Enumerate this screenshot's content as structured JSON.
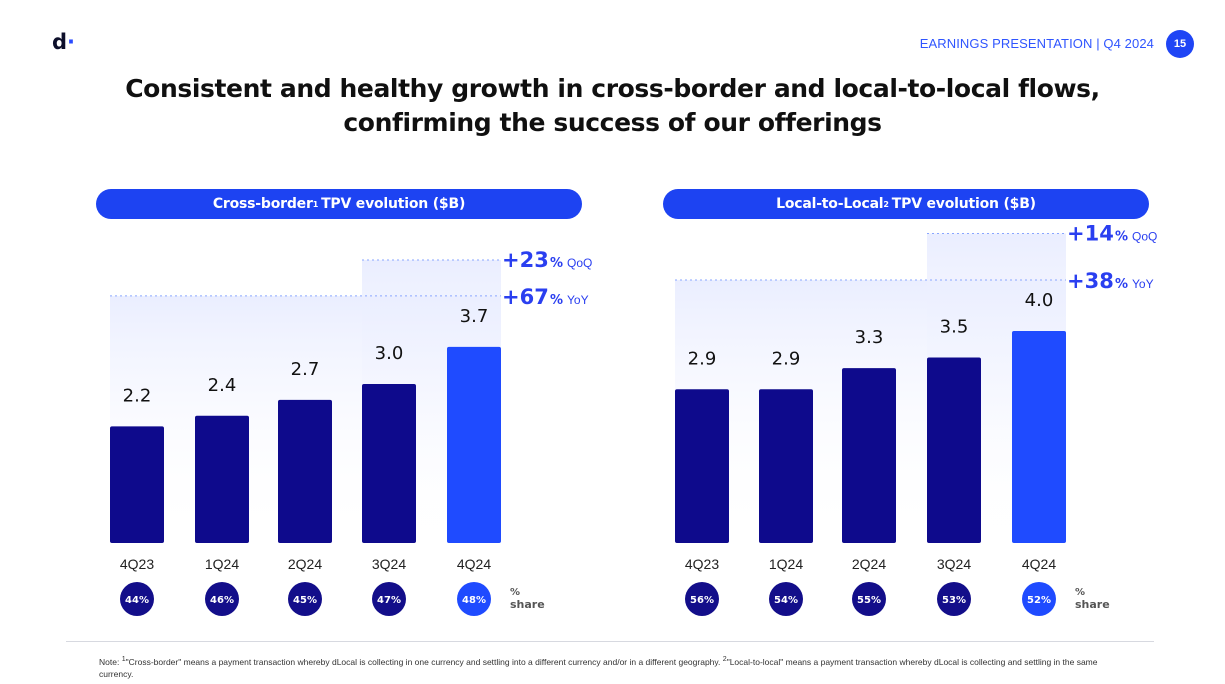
{
  "header": {
    "logo_text": "d",
    "logo_dot": "·",
    "label": "EARNINGS PRESENTATION | Q4 2024",
    "page_number": "15"
  },
  "title": {
    "line1": "Consistent and healthy growth in cross-border and local-to-local flows,",
    "line2": "confirming the success of our offerings"
  },
  "colors": {
    "bar_dark": "#0e0a8c",
    "bar_highlight": "#1f4bff",
    "accent": "#1d43f2",
    "growth_text": "#2a3ff0"
  },
  "chart_data": [
    {
      "type": "bar",
      "title_main": "Cross-border",
      "title_sup": "1",
      "title_rest": "TPV evolution ($B)",
      "categories": [
        "4Q23",
        "1Q24",
        "2Q24",
        "3Q24",
        "4Q24"
      ],
      "values": [
        2.2,
        2.4,
        2.7,
        3.0,
        3.7
      ],
      "value_labels": [
        "2.2",
        "2.4",
        "2.7",
        "3.0",
        "3.7"
      ],
      "highlight_index": 4,
      "shares": [
        "44%",
        "46%",
        "45%",
        "47%",
        "48%"
      ],
      "share_label_1": "%",
      "share_label_2": "share",
      "qoq_value": "+23",
      "qoq_unit": "%",
      "qoq_label": "QoQ",
      "yoy_value": "+67",
      "yoy_unit": "%",
      "yoy_label": "YoY",
      "ylim": [
        0,
        4.6
      ]
    },
    {
      "type": "bar",
      "title_main": "Local-to-Local",
      "title_sup": "2",
      "title_rest": "TPV evolution ($B)",
      "categories": [
        "4Q23",
        "1Q24",
        "2Q24",
        "3Q24",
        "4Q24"
      ],
      "values": [
        2.9,
        2.9,
        3.3,
        3.5,
        4.0
      ],
      "value_labels": [
        "2.9",
        "2.9",
        "3.3",
        "3.5",
        "4.0"
      ],
      "highlight_index": 4,
      "shares": [
        "56%",
        "54%",
        "55%",
        "53%",
        "52%"
      ],
      "share_label_1": "%",
      "share_label_2": "share",
      "qoq_value": "+14",
      "qoq_unit": "%",
      "qoq_label": "QoQ",
      "yoy_value": "+38",
      "yoy_unit": "%",
      "yoy_label": "YoY",
      "ylim": [
        0,
        4.6
      ]
    }
  ],
  "footnote": {
    "note_prefix": "Note: ",
    "sup1": "1",
    "text1": "\"Cross-border\" means a payment transaction whereby dLocal is collecting in one currency and settling into a different currency and/or in a different geography. ",
    "sup2": "2",
    "text2": "\"Local-to-local\" means a payment transaction whereby dLocal is collecting and settling in the same currency."
  }
}
